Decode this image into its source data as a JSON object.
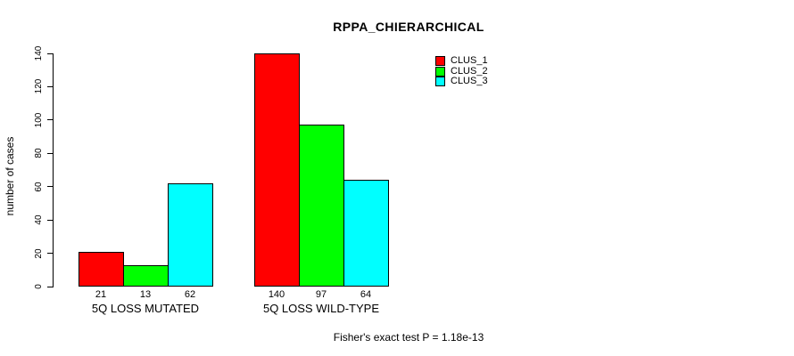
{
  "chart_data": {
    "type": "bar",
    "title": "RPPA_CHIERARCHICAL",
    "xlabel": "",
    "ylabel": "number of cases",
    "ylim": [
      0,
      140
    ],
    "yticks": [
      0,
      20,
      40,
      60,
      80,
      100,
      120,
      140
    ],
    "grid": false,
    "legend_position": "top-right",
    "categories": [
      "5Q LOSS MUTATED",
      "5Q LOSS WILD-TYPE"
    ],
    "series": [
      {
        "name": "CLUS_1",
        "color": "#FF0000",
        "values": [
          21,
          140
        ]
      },
      {
        "name": "CLUS_2",
        "color": "#00FF00",
        "values": [
          13,
          97
        ]
      },
      {
        "name": "CLUS_3",
        "color": "#00FFFF",
        "values": [
          62,
          64
        ]
      }
    ],
    "show_bar_values": true,
    "bar_value_labels": [
      [
        21,
        13,
        62
      ],
      [
        140,
        97,
        64
      ]
    ],
    "footnote": "Fisher's exact test P = 1.18e-13",
    "axis_color": "#000000",
    "background_color": "#FFFFFF"
  }
}
